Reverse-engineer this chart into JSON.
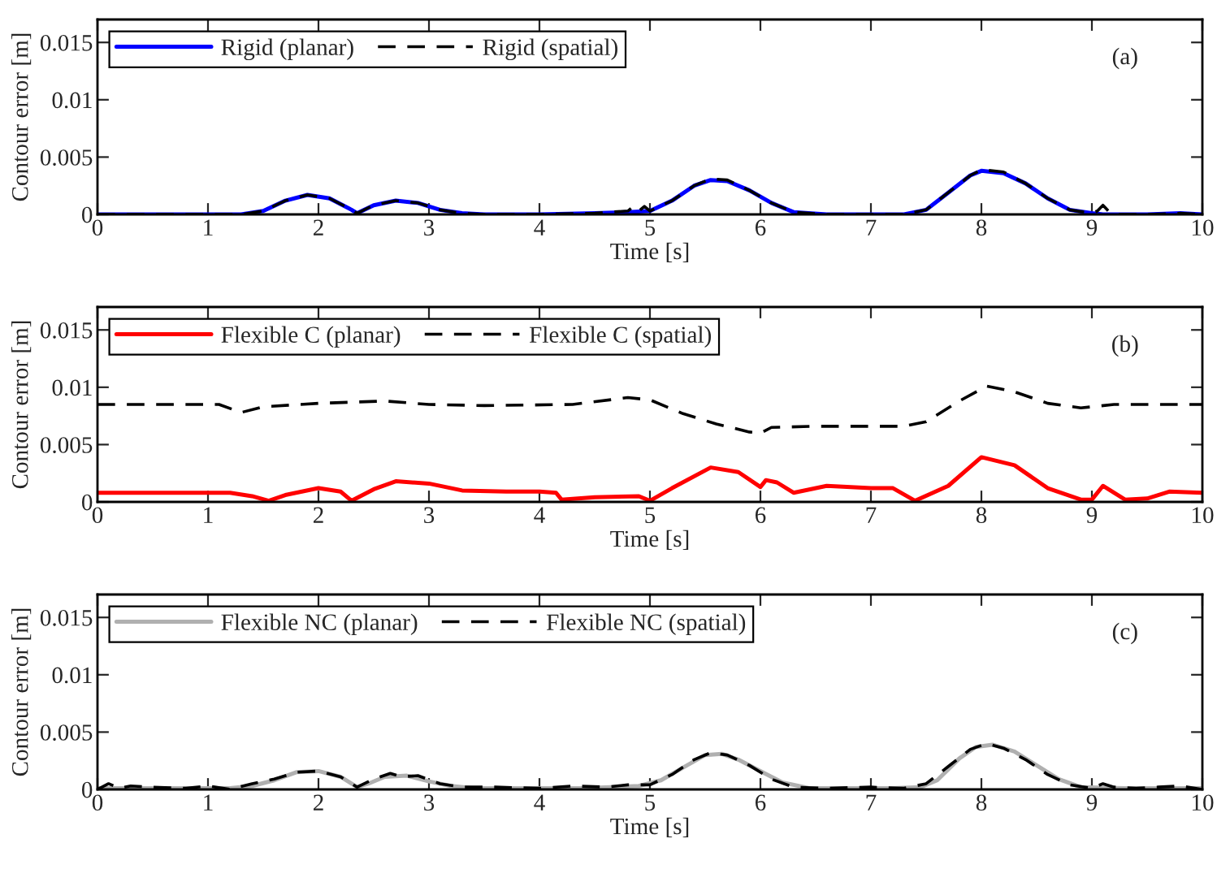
{
  "chart_data": [
    {
      "type": "line",
      "xlabel": "Time [s]",
      "ylabel": "Contour error [m]",
      "xlim": [
        0,
        10
      ],
      "xticks": [
        0,
        1,
        2,
        3,
        4,
        5,
        6,
        7,
        8,
        9,
        10
      ],
      "ylim": [
        0,
        0.017
      ],
      "yticks": [
        0,
        0.005,
        0.01,
        0.015
      ],
      "grid": false,
      "legend": "top left",
      "annotations": [
        "(a)"
      ],
      "series": [
        {
          "name": "Rigid (planar)",
          "color": "#0000ff",
          "line_style": "solid",
          "x": [
            0,
            0.5,
            1,
            1.3,
            1.5,
            1.7,
            1.9,
            2.1,
            2.3,
            2.35,
            2.5,
            2.7,
            2.9,
            3.1,
            3.3,
            3.5,
            4,
            4.5,
            4.8,
            5.0,
            5.2,
            5.4,
            5.55,
            5.7,
            5.9,
            6.1,
            6.3,
            6.6,
            7,
            7.3,
            7.5,
            7.7,
            7.9,
            8.0,
            8.2,
            8.4,
            8.6,
            8.8,
            9.0,
            9.1,
            9.2,
            9.5,
            9.8,
            10
          ],
          "values": [
            0,
            0,
            0,
            0,
            0.0003,
            0.0012,
            0.0017,
            0.0014,
            0.0004,
            0.0001,
            0.0008,
            0.0012,
            0.001,
            0.0004,
            0.0001,
            0,
            0,
            0.0001,
            0.0002,
            0.0003,
            0.0012,
            0.0025,
            0.003,
            0.0029,
            0.0021,
            0.001,
            0.0002,
            0,
            0,
            0,
            0.0004,
            0.0019,
            0.0034,
            0.0038,
            0.0036,
            0.0027,
            0.0014,
            0.0004,
            0.0001,
            0,
            0,
            0,
            0.0001,
            0
          ]
        },
        {
          "name": "Rigid (spatial)",
          "color": "#000000",
          "line_style": "dashed",
          "x": [
            0,
            0.5,
            1,
            1.3,
            1.5,
            1.7,
            1.9,
            2.1,
            2.3,
            2.35,
            2.5,
            2.7,
            2.9,
            3.1,
            3.3,
            3.5,
            4,
            4.5,
            4.8,
            4.85,
            4.9,
            4.95,
            5.0,
            5.2,
            5.4,
            5.55,
            5.7,
            5.9,
            6.1,
            6.3,
            6.6,
            7,
            7.3,
            7.5,
            7.7,
            7.9,
            8.0,
            8.2,
            8.4,
            8.6,
            8.8,
            9.0,
            9.05,
            9.1,
            9.15,
            9.2,
            9.5,
            9.8,
            10
          ],
          "values": [
            0,
            0,
            0,
            0,
            0.0003,
            0.0012,
            0.0017,
            0.0014,
            0.0004,
            0.0001,
            0.0008,
            0.0012,
            0.001,
            0.0004,
            0.0001,
            0,
            0,
            0.0001,
            0.0003,
            0.0007,
            0.0003,
            0.0007,
            0.0003,
            0.0012,
            0.0025,
            0.0031,
            0.003,
            0.0021,
            0.001,
            0.0002,
            0,
            0,
            0,
            0.0004,
            0.0019,
            0.0034,
            0.0039,
            0.0037,
            0.0027,
            0.0014,
            0.0004,
            0.0001,
            0.0003,
            0.0008,
            0.0003,
            0,
            0,
            0.0001,
            0
          ]
        }
      ]
    },
    {
      "type": "line",
      "xlabel": "Time [s]",
      "ylabel": "Contour error [m]",
      "xlim": [
        0,
        10
      ],
      "xticks": [
        0,
        1,
        2,
        3,
        4,
        5,
        6,
        7,
        8,
        9,
        10
      ],
      "ylim": [
        0,
        0.017
      ],
      "yticks": [
        0,
        0.005,
        0.01,
        0.015
      ],
      "grid": false,
      "legend": "top left",
      "annotations": [
        "(b)"
      ],
      "series": [
        {
          "name": "Flexible C (planar)",
          "color": "#ff0000",
          "line_style": "solid",
          "x": [
            0,
            0.5,
            1,
            1.2,
            1.4,
            1.55,
            1.7,
            2.0,
            2.2,
            2.3,
            2.5,
            2.7,
            3.0,
            3.3,
            3.7,
            4.0,
            4.15,
            4.2,
            4.5,
            4.9,
            5.0,
            5.2,
            5.55,
            5.8,
            6.0,
            6.05,
            6.15,
            6.3,
            6.6,
            7.0,
            7.2,
            7.4,
            7.7,
            8.0,
            8.3,
            8.6,
            8.9,
            9.0,
            9.1,
            9.2,
            9.3,
            9.5,
            9.7,
            10
          ],
          "values": [
            0.0008,
            0.0008,
            0.0008,
            0.0008,
            0.0005,
            0.0001,
            0.0006,
            0.0012,
            0.0009,
            0.0001,
            0.0011,
            0.0018,
            0.0016,
            0.001,
            0.0009,
            0.0009,
            0.0008,
            0.0002,
            0.0004,
            0.0005,
            0.0001,
            0.0012,
            0.003,
            0.0026,
            0.0013,
            0.0019,
            0.0017,
            0.0008,
            0.0014,
            0.0012,
            0.0012,
            0.0001,
            0.0014,
            0.0039,
            0.0032,
            0.0012,
            0.0002,
            0.0002,
            0.0014,
            0.0008,
            0.0002,
            0.0003,
            0.0009,
            0.0008
          ]
        },
        {
          "name": "Flexible C (spatial)",
          "color": "#000000",
          "line_style": "dashed",
          "x": [
            0,
            1.1,
            1.3,
            1.5,
            2,
            2.6,
            3,
            3.5,
            4.3,
            4.8,
            5.0,
            5.3,
            5.6,
            5.9,
            6.0,
            6.1,
            6.5,
            7.0,
            7.3,
            7.5,
            7.8,
            8.05,
            8.3,
            8.6,
            8.9,
            9.2,
            10
          ],
          "values": [
            0.0085,
            0.0085,
            0.0078,
            0.0083,
            0.0086,
            0.0088,
            0.0085,
            0.0084,
            0.0085,
            0.0091,
            0.0089,
            0.0077,
            0.0068,
            0.0061,
            0.006,
            0.0065,
            0.0066,
            0.0066,
            0.0066,
            0.007,
            0.0088,
            0.0101,
            0.0096,
            0.0086,
            0.0082,
            0.0085,
            0.0085
          ]
        }
      ]
    },
    {
      "type": "line",
      "xlabel": "Time [s]",
      "ylabel": "Contour error [m]",
      "xlim": [
        0,
        10
      ],
      "xticks": [
        0,
        1,
        2,
        3,
        4,
        5,
        6,
        7,
        8,
        9,
        10
      ],
      "ylim": [
        0,
        0.017
      ],
      "yticks": [
        0,
        0.005,
        0.01,
        0.015
      ],
      "grid": false,
      "legend": "top left",
      "annotations": [
        "(c)"
      ],
      "series": [
        {
          "name": "Flexible NC (planar)",
          "color": "#b0b0b0",
          "line_style": "solid",
          "x": [
            0,
            0.6,
            1.2,
            1.4,
            1.6,
            1.8,
            2.0,
            2.2,
            2.35,
            2.45,
            2.6,
            2.8,
            3.0,
            3.2,
            3.4,
            3.8,
            4.4,
            4.9,
            5.1,
            5.3,
            5.5,
            5.65,
            5.8,
            6.0,
            6.2,
            6.45,
            6.8,
            7.2,
            7.45,
            7.6,
            7.8,
            7.95,
            8.1,
            8.3,
            8.5,
            8.7,
            8.9,
            9.3,
            9.7,
            10
          ],
          "values": [
            0.0001,
            0.0001,
            0.0001,
            0.0003,
            0.0008,
            0.0015,
            0.0016,
            0.0011,
            0.0002,
            0.0005,
            0.0011,
            0.0012,
            0.0007,
            0.0003,
            0.0001,
            0.0001,
            0.0001,
            0.0003,
            0.0008,
            0.0019,
            0.003,
            0.0031,
            0.0026,
            0.0016,
            0.0006,
            0.0001,
            0.0001,
            0.0001,
            0.0002,
            0.0008,
            0.0027,
            0.0037,
            0.0039,
            0.0033,
            0.0021,
            0.0009,
            0.0002,
            0.0001,
            0.0001,
            0.0001
          ]
        },
        {
          "name": "Flexible NC (spatial)",
          "color": "#000000",
          "line_style": "dashed",
          "x": [
            0,
            0.1,
            0.2,
            0.3,
            0.5,
            0.8,
            1,
            1.2,
            1.4,
            1.6,
            1.8,
            2.0,
            2.2,
            2.35,
            2.5,
            2.65,
            2.75,
            2.9,
            3.1,
            3.3,
            3.6,
            4,
            4.3,
            4.6,
            4.8,
            5.0,
            5.2,
            5.4,
            5.55,
            5.7,
            5.9,
            6.1,
            6.3,
            6.6,
            7,
            7.3,
            7.5,
            7.7,
            7.9,
            8.05,
            8.2,
            8.4,
            8.6,
            8.8,
            9.0,
            9.1,
            9.2,
            9.4,
            9.6,
            9.8,
            10
          ],
          "values": [
            0,
            0.0005,
            0.0001,
            0.0003,
            0.0002,
            0.0001,
            0.0003,
            0,
            0.0005,
            0.0009,
            0.0015,
            0.0016,
            0.0011,
            0.0002,
            0.0009,
            0.0014,
            0.0011,
            0.0012,
            0.0005,
            0.0002,
            0.0002,
            0.0001,
            0.0003,
            0.0002,
            0.0004,
            0.0004,
            0.0013,
            0.0026,
            0.0032,
            0.003,
            0.0021,
            0.0009,
            0.0002,
            0.0001,
            0.0002,
            0.0001,
            0.0005,
            0.002,
            0.0035,
            0.004,
            0.0036,
            0.0026,
            0.0013,
            0.0004,
            0.0001,
            0.0005,
            0.0002,
            0.0001,
            0.0002,
            0.0003,
            0
          ]
        }
      ]
    }
  ]
}
